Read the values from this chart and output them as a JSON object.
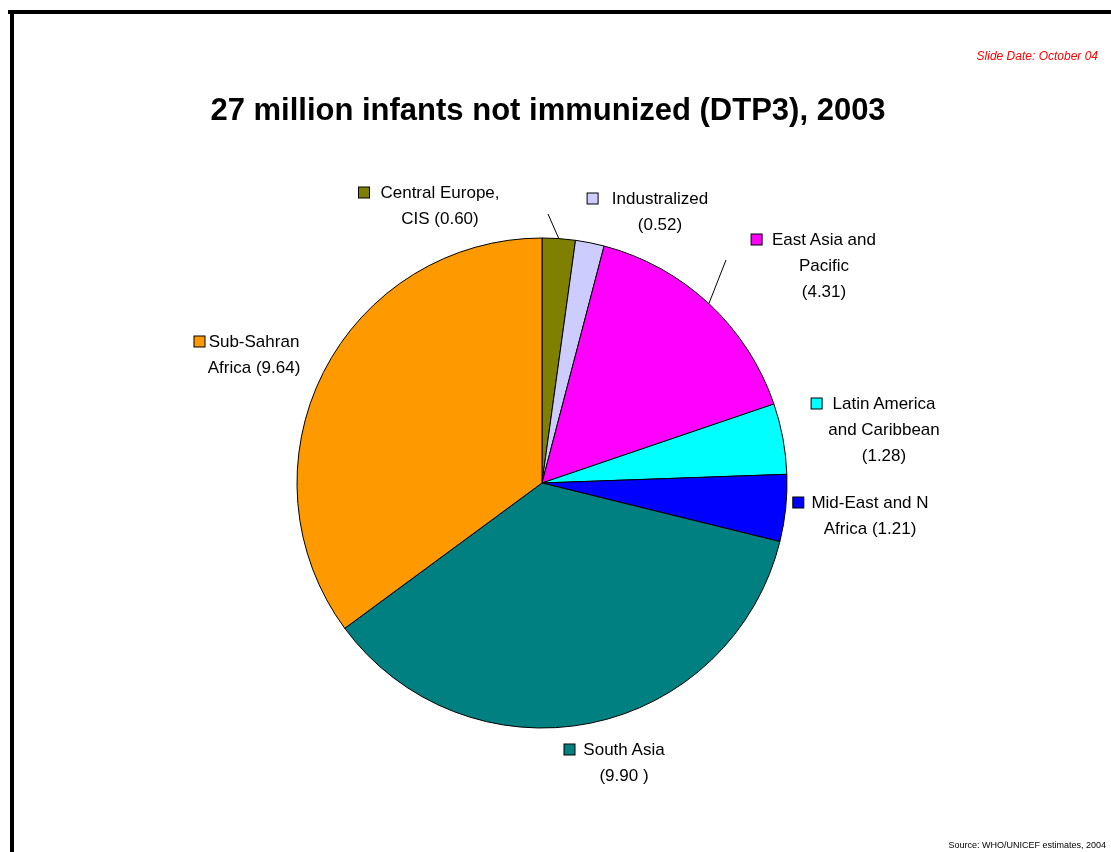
{
  "chart_data": {
    "type": "pie",
    "title": "27 million infants not immunized (DTP3), 2003",
    "categories": [
      "Central Europe, CIS",
      "Industralized",
      "East Asia and Pacific",
      "Latin America and Caribbean",
      "Mid-East and N Africa",
      "South Asia",
      "Sub-Sahran Africa"
    ],
    "values": [
      0.6,
      0.52,
      4.31,
      1.28,
      1.21,
      9.9,
      9.64
    ],
    "value_labels": [
      "(0.60)",
      "(0.52)",
      "(4.31)",
      "(1.28)",
      "(1.21)",
      "(9.90 )",
      "(9.64)"
    ],
    "colors": [
      "#808000",
      "#ccccff",
      "#ff00ff",
      "#00ffff",
      "#0000ff",
      "#008080",
      "#ff9900"
    ],
    "legend": "right",
    "annotations": [
      "Slide Date: October 04",
      "Source: WHO/UNICEF estimates, 2004"
    ]
  }
}
